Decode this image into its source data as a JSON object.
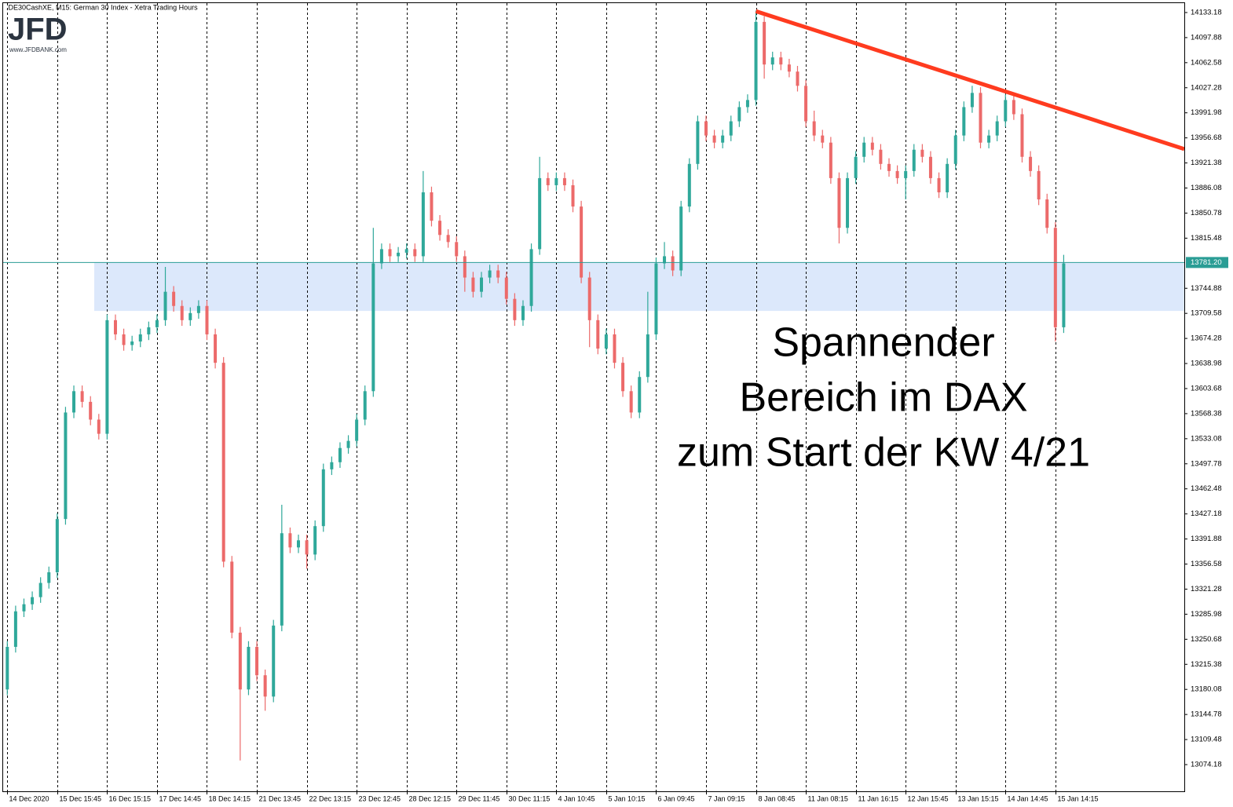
{
  "chart_data": {
    "type": "candlestick",
    "header": ".DE30CashXE, M15:  German 30 Index  - Xetra Trading Hours",
    "logo": "JFD",
    "logo_url": "www.JFDBANK.com",
    "annotation": [
      "Spannender",
      "Bereich im DAX",
      "zum Start der KW 4/21"
    ],
    "up_color": "#2fa89a",
    "down_color": "#ec6a6a",
    "grid": true,
    "xlim": [
      -0.5,
      141.5
    ],
    "ylim": [
      13036.6,
      14146.4
    ],
    "yticks": [
      14133.18,
      14097.88,
      14062.58,
      14027.28,
      13991.98,
      13956.68,
      13921.38,
      13886.08,
      13850.78,
      13815.48,
      13744.88,
      13709.58,
      13674.28,
      13638.98,
      13603.68,
      13568.38,
      13533.08,
      13497.78,
      13462.48,
      13427.18,
      13391.88,
      13356.58,
      13321.28,
      13285.98,
      13250.68,
      13215.38,
      13180.08,
      13144.78,
      13109.48,
      13074.18
    ],
    "xticks": [
      {
        "value": 0,
        "label": "14 Dec 2020"
      },
      {
        "value": 6,
        "label": "15 Dec 15:45"
      },
      {
        "value": 12,
        "label": "16 Dec 15:15"
      },
      {
        "value": 18,
        "label": "17 Dec 14:45"
      },
      {
        "value": 24,
        "label": "18 Dec 14:15"
      },
      {
        "value": 30,
        "label": "21 Dec 13:45"
      },
      {
        "value": 36,
        "label": "22 Dec 13:15"
      },
      {
        "value": 42,
        "label": "23 Dec 12:45"
      },
      {
        "value": 48,
        "label": "28 Dec 12:15"
      },
      {
        "value": 54,
        "label": "29 Dec 11:45"
      },
      {
        "value": 60,
        "label": "30 Dec 11:15"
      },
      {
        "value": 66,
        "label": "4 Jan 10:45"
      },
      {
        "value": 72,
        "label": "5 Jan 10:15"
      },
      {
        "value": 78,
        "label": "6 Jan 09:45"
      },
      {
        "value": 84,
        "label": "7 Jan 09:15"
      },
      {
        "value": 90,
        "label": "8 Jan 08:45"
      },
      {
        "value": 96,
        "label": "11 Jan 08:15"
      },
      {
        "value": 102,
        "label": "11 Jan 16:15"
      },
      {
        "value": 108,
        "label": "12 Jan 15:45"
      },
      {
        "value": 114,
        "label": "13 Jan 15:15"
      },
      {
        "value": 120,
        "label": "14 Jan 14:45"
      },
      {
        "value": 126,
        "label": "15 Jan 14:15"
      }
    ],
    "current_price": {
      "value": 13781.2,
      "label": "13781.20",
      "color": "#2a9d95"
    },
    "zone": {
      "x": 10.45,
      "y": [
        13713,
        13781.2
      ],
      "color": "#dce8fb"
    },
    "trendline": {
      "x": [
        90,
        141.5
      ],
      "y": [
        14135,
        13941
      ],
      "color": "#ff3b1f"
    },
    "ohlc": [
      [
        13180,
        13248,
        13172,
        13240
      ],
      [
        13240,
        13298,
        13232,
        13290
      ],
      [
        13290,
        13308,
        13282,
        13300
      ],
      [
        13300,
        13318,
        13292,
        13310
      ],
      [
        13310,
        13338,
        13302,
        13330
      ],
      [
        13330,
        13353,
        13322,
        13345
      ],
      [
        13345,
        13428,
        13337,
        13420
      ],
      [
        13420,
        13578,
        13412,
        13570
      ],
      [
        13570,
        13608,
        13562,
        13600
      ],
      [
        13600,
        13608,
        13577,
        13585
      ],
      [
        13585,
        13593,
        13552,
        13560
      ],
      [
        13560,
        13568,
        13532,
        13540
      ],
      [
        13540,
        13708,
        13532,
        13700
      ],
      [
        13700,
        13708,
        13672,
        13680
      ],
      [
        13680,
        13688,
        13657,
        13665
      ],
      [
        13665,
        13678,
        13657,
        13670
      ],
      [
        13670,
        13688,
        13662,
        13680
      ],
      [
        13680,
        13698,
        13672,
        13690
      ],
      [
        13690,
        13708,
        13682,
        13700
      ],
      [
        13700,
        13775,
        13692,
        13740
      ],
      [
        13740,
        13748,
        13712,
        13720
      ],
      [
        13720,
        13728,
        13692,
        13700
      ],
      [
        13700,
        13718,
        13692,
        13710
      ],
      [
        13710,
        13728,
        13702,
        13720
      ],
      [
        13720,
        13728,
        13672,
        13680
      ],
      [
        13680,
        13688,
        13632,
        13640
      ],
      [
        13640,
        13648,
        13352,
        13360
      ],
      [
        13360,
        13368,
        13252,
        13260
      ],
      [
        13260,
        13268,
        13080,
        13180
      ],
      [
        13180,
        13248,
        13172,
        13240
      ],
      [
        13240,
        13248,
        13192,
        13200
      ],
      [
        13200,
        13208,
        13150,
        13170
      ],
      [
        13170,
        13278,
        13162,
        13270
      ],
      [
        13270,
        13440,
        13262,
        13400
      ],
      [
        13400,
        13408,
        13372,
        13380
      ],
      [
        13380,
        13398,
        13372,
        13390
      ],
      [
        13390,
        13398,
        13350,
        13370
      ],
      [
        13370,
        13418,
        13362,
        13410
      ],
      [
        13410,
        13498,
        13402,
        13490
      ],
      [
        13490,
        13508,
        13482,
        13500
      ],
      [
        13500,
        13528,
        13492,
        13520
      ],
      [
        13520,
        13538,
        13512,
        13530
      ],
      [
        13530,
        13568,
        13522,
        13560
      ],
      [
        13560,
        13608,
        13552,
        13600
      ],
      [
        13600,
        13830,
        13592,
        13780
      ],
      [
        13780,
        13808,
        13772,
        13800
      ],
      [
        13800,
        13808,
        13782,
        13790
      ],
      [
        13790,
        13803,
        13782,
        13795
      ],
      [
        13795,
        13808,
        13787,
        13800
      ],
      [
        13800,
        13808,
        13782,
        13790
      ],
      [
        13790,
        13910,
        13782,
        13880
      ],
      [
        13880,
        13888,
        13832,
        13840
      ],
      [
        13840,
        13848,
        13812,
        13820
      ],
      [
        13820,
        13828,
        13802,
        13810
      ],
      [
        13810,
        13818,
        13782,
        13790
      ],
      [
        13790,
        13798,
        13740,
        13760
      ],
      [
        13760,
        13768,
        13732,
        13740
      ],
      [
        13740,
        13768,
        13732,
        13760
      ],
      [
        13760,
        13778,
        13752,
        13770
      ],
      [
        13770,
        13778,
        13752,
        13760
      ],
      [
        13760,
        13768,
        13722,
        13730
      ],
      [
        13730,
        13738,
        13692,
        13700
      ],
      [
        13700,
        13728,
        13692,
        13720
      ],
      [
        13720,
        13808,
        13712,
        13800
      ],
      [
        13800,
        13930,
        13792,
        13900
      ],
      [
        13900,
        13908,
        13882,
        13890
      ],
      [
        13890,
        13908,
        13882,
        13900
      ],
      [
        13900,
        13908,
        13882,
        13890
      ],
      [
        13890,
        13898,
        13852,
        13860
      ],
      [
        13860,
        13868,
        13752,
        13760
      ],
      [
        13760,
        13768,
        13662,
        13700
      ],
      [
        13700,
        13708,
        13652,
        13660
      ],
      [
        13660,
        13688,
        13652,
        13680
      ],
      [
        13680,
        13688,
        13632,
        13640
      ],
      [
        13640,
        13648,
        13592,
        13600
      ],
      [
        13600,
        13608,
        13562,
        13570
      ],
      [
        13570,
        13628,
        13562,
        13620
      ],
      [
        13620,
        13740,
        13612,
        13680
      ],
      [
        13680,
        13788,
        13672,
        13780
      ],
      [
        13780,
        13810,
        13772,
        13790
      ],
      [
        13790,
        13798,
        13762,
        13770
      ],
      [
        13770,
        13868,
        13762,
        13860
      ],
      [
        13860,
        13928,
        13852,
        13920
      ],
      [
        13920,
        13988,
        13912,
        13980
      ],
      [
        13980,
        13988,
        13952,
        13960
      ],
      [
        13960,
        13968,
        13942,
        13950
      ],
      [
        13950,
        13968,
        13942,
        13960
      ],
      [
        13960,
        13988,
        13952,
        13980
      ],
      [
        13980,
        14008,
        13972,
        14000
      ],
      [
        14000,
        14018,
        13992,
        14010
      ],
      [
        14010,
        14136,
        14002,
        14120
      ],
      [
        14120,
        14128,
        14040,
        14060
      ],
      [
        14060,
        14078,
        14052,
        14070
      ],
      [
        14070,
        14078,
        14052,
        14060
      ],
      [
        14060,
        14068,
        14042,
        14050
      ],
      [
        14050,
        14058,
        14022,
        14030
      ],
      [
        14030,
        14038,
        13972,
        13980
      ],
      [
        13980,
        13995,
        13952,
        13960
      ],
      [
        13960,
        13968,
        13942,
        13950
      ],
      [
        13950,
        13958,
        13892,
        13900
      ],
      [
        13900,
        13908,
        13808,
        13830
      ],
      [
        13830,
        13908,
        13822,
        13900
      ],
      [
        13900,
        13938,
        13892,
        13930
      ],
      [
        13930,
        13958,
        13922,
        13950
      ],
      [
        13950,
        13958,
        13932,
        13940
      ],
      [
        13940,
        13948,
        13912,
        13920
      ],
      [
        13920,
        13928,
        13902,
        13910
      ],
      [
        13910,
        13918,
        13892,
        13900
      ],
      [
        13900,
        13918,
        13870,
        13910
      ],
      [
        13910,
        13948,
        13902,
        13940
      ],
      [
        13940,
        13948,
        13922,
        13930
      ],
      [
        13930,
        13938,
        13892,
        13900
      ],
      [
        13900,
        13908,
        13872,
        13880
      ],
      [
        13880,
        13928,
        13872,
        13920
      ],
      [
        13920,
        13968,
        13912,
        13960
      ],
      [
        13960,
        14008,
        13952,
        14000
      ],
      [
        14000,
        14030,
        13992,
        14020
      ],
      [
        14020,
        14028,
        13942,
        13950
      ],
      [
        13950,
        13968,
        13942,
        13960
      ],
      [
        13960,
        13988,
        13952,
        13980
      ],
      [
        13980,
        14018,
        13972,
        14010
      ],
      [
        14010,
        14018,
        13982,
        13990
      ],
      [
        13990,
        13998,
        13922,
        13930
      ],
      [
        13930,
        13938,
        13902,
        13910
      ],
      [
        13910,
        13918,
        13862,
        13870
      ],
      [
        13870,
        13878,
        13822,
        13830
      ],
      [
        13830,
        13838,
        13670,
        13690
      ],
      [
        13690,
        13792,
        13682,
        13780
      ]
    ]
  }
}
